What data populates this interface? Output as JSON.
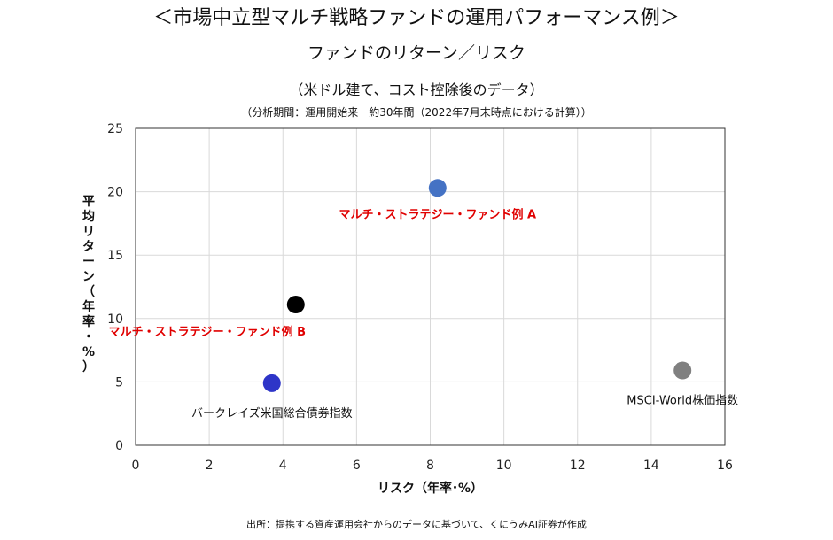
{
  "titles": {
    "main": "＜市場中立型マルチ戦略ファンドの運用パフォーマンス例＞",
    "sub": "ファンドのリターン／リスク",
    "sub2": "（米ドル建て、コスト控除後のデータ）",
    "note": "（分析期間：運用開始来　約30年間（2022年7月末時点における計算））"
  },
  "source": "出所：提携する資産運用会社からのデータに基づいて、くにうみAI証券が作成",
  "chart_data": {
    "type": "scatter",
    "xlabel": "リスク（年率･%）",
    "ylabel": "平均リターン（年率・%）",
    "xlim": [
      0,
      16
    ],
    "ylim": [
      0,
      25
    ],
    "xticks": [
      0,
      2,
      4,
      6,
      8,
      10,
      12,
      14,
      16
    ],
    "yticks": [
      0,
      5,
      10,
      15,
      20,
      25
    ],
    "grid": true,
    "points": [
      {
        "label": "マルチ・ストラテジー・ファンド例 A",
        "x": 8.2,
        "y": 20.3,
        "color": "#4472C4",
        "label_color": "#E00000",
        "label_bold": true,
        "label_pos": "below"
      },
      {
        "label": "マルチ・ストラテジー・ファンド例 B",
        "x": 4.35,
        "y": 11.1,
        "color": "#000000",
        "label_color": "#E00000",
        "label_bold": true,
        "label_pos": "below-left"
      },
      {
        "label": "バークレイズ米国総合債券指数",
        "x": 3.7,
        "y": 4.9,
        "color": "#2E35C8",
        "label_color": "#111111",
        "label_bold": false,
        "label_pos": "below"
      },
      {
        "label": "MSCI-World株価指数",
        "x": 14.85,
        "y": 5.9,
        "color": "#808080",
        "label_color": "#111111",
        "label_bold": false,
        "label_pos": "below"
      }
    ]
  }
}
